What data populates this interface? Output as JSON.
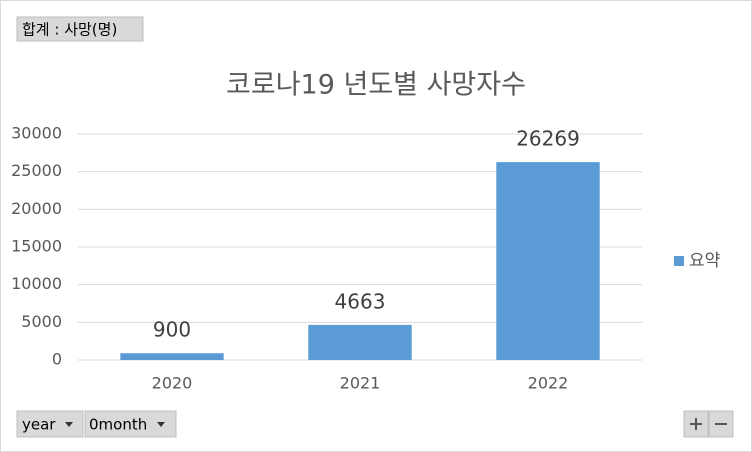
{
  "field_button": "합계 : 사망(명)",
  "filter_buttons": [
    "year",
    "0month"
  ],
  "chart_data": {
    "type": "bar",
    "title": "코로나19 년도별 사망자수",
    "categories": [
      "2020",
      "2021",
      "2022"
    ],
    "series": [
      {
        "name": "요약",
        "color": "#5b9bd5",
        "values": [
          900,
          4663,
          26269
        ]
      }
    ],
    "ylim": [
      0,
      30000
    ],
    "yticks": [
      0,
      5000,
      10000,
      15000,
      20000,
      25000,
      30000
    ],
    "grid": true,
    "legend": "right"
  }
}
